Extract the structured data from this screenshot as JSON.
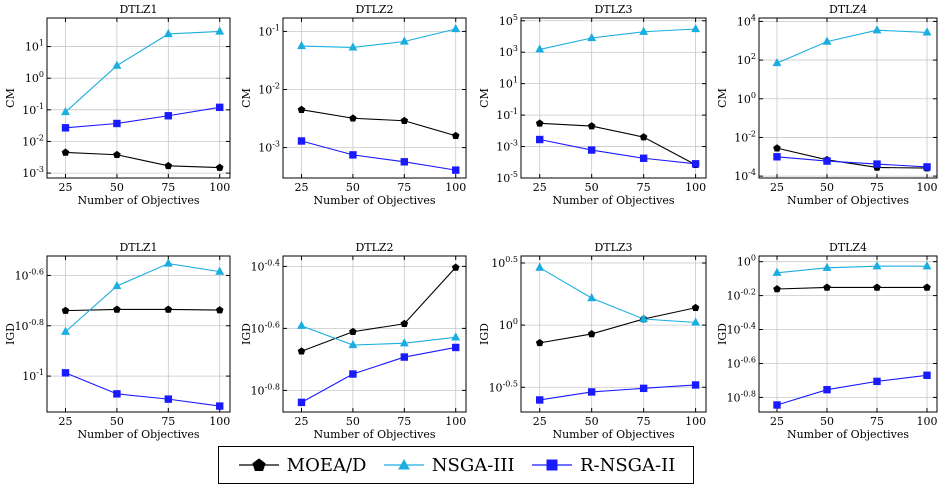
{
  "legend": {
    "entries": [
      {
        "name": "MOEA/D",
        "color": "#000000",
        "marker": "pentagon"
      },
      {
        "name": "NSGA-III",
        "color": "#1aaee0",
        "marker": "triangle"
      },
      {
        "name": "R-NSGA-II",
        "color": "#1a1aff",
        "marker": "square"
      }
    ]
  },
  "chart_data": [
    {
      "type": "line",
      "title": "DTLZ1",
      "xlabel": "Number of Objectives",
      "ylabel": "CM",
      "x": [
        25,
        50,
        75,
        100
      ],
      "xlim": [
        16,
        105
      ],
      "yscale": "log",
      "ylim": [
        0.0007,
        80
      ],
      "yticks": [
        0.001,
        0.01,
        0.1,
        1,
        10
      ],
      "yticklabels": [
        "10^-3",
        "10^-2",
        "10^-1",
        "10^0",
        "10^1"
      ],
      "series": [
        {
          "name": "MOEA/D",
          "values": [
            0.0045,
            0.0038,
            0.0017,
            0.0015
          ]
        },
        {
          "name": "NSGA-III",
          "values": [
            0.085,
            2.5,
            25,
            30
          ]
        },
        {
          "name": "R-NSGA-II",
          "values": [
            0.027,
            0.037,
            0.065,
            0.12
          ]
        }
      ]
    },
    {
      "type": "line",
      "title": "DTLZ2",
      "xlabel": "Number of Objectives",
      "ylabel": "CM",
      "x": [
        25,
        50,
        75,
        100
      ],
      "xlim": [
        16,
        105
      ],
      "yscale": "log",
      "ylim": [
        0.0003,
        0.17
      ],
      "yticks": [
        0.001,
        0.01,
        0.1
      ],
      "yticklabels": [
        "10^-3",
        "10^-2",
        "10^-1"
      ],
      "series": [
        {
          "name": "MOEA/D",
          "values": [
            0.0045,
            0.0032,
            0.0029,
            0.0016
          ]
        },
        {
          "name": "NSGA-III",
          "values": [
            0.056,
            0.053,
            0.067,
            0.11
          ]
        },
        {
          "name": "R-NSGA-II",
          "values": [
            0.0013,
            0.00075,
            0.00057,
            0.00041
          ]
        }
      ]
    },
    {
      "type": "line",
      "title": "DTLZ3",
      "xlabel": "Number of Objectives",
      "ylabel": "CM",
      "x": [
        25,
        50,
        75,
        100
      ],
      "xlim": [
        16,
        105
      ],
      "yscale": "log",
      "ylim": [
        1e-05,
        150000
      ],
      "yticks": [
        1e-05,
        0.001,
        0.1,
        10,
        1000,
        100000
      ],
      "yticklabels": [
        "10^-5",
        "10^-3",
        "10^-1",
        "10^1",
        "10^3",
        "10^5"
      ],
      "series": [
        {
          "name": "MOEA/D",
          "values": [
            0.03,
            0.02,
            0.004,
            7e-05
          ]
        },
        {
          "name": "NSGA-III",
          "values": [
            1500,
            8000,
            20000,
            30000
          ]
        },
        {
          "name": "R-NSGA-II",
          "values": [
            0.0028,
            0.0006,
            0.00018,
            8e-05
          ]
        }
      ]
    },
    {
      "type": "line",
      "title": "DTLZ4",
      "xlabel": "Number of Objectives",
      "ylabel": "CM",
      "x": [
        25,
        50,
        75,
        100
      ],
      "xlim": [
        16,
        105
      ],
      "yscale": "log",
      "ylim": [
        8e-05,
        15000
      ],
      "yticks": [
        0.0001,
        0.01,
        1,
        100,
        10000
      ],
      "yticklabels": [
        "10^-4",
        "10^-2",
        "10^0",
        "10^2",
        "10^4"
      ],
      "series": [
        {
          "name": "MOEA/D",
          "values": [
            0.0028,
            0.0007,
            0.00028,
            0.00026
          ]
        },
        {
          "name": "NSGA-III",
          "values": [
            70,
            900,
            3500,
            2700
          ]
        },
        {
          "name": "R-NSGA-II",
          "values": [
            0.001,
            0.0006,
            0.00042,
            0.0003
          ]
        }
      ]
    },
    {
      "type": "line",
      "title": "DTLZ1",
      "xlabel": "Number of Objectives",
      "ylabel": "IGD",
      "x": [
        25,
        50,
        75,
        100
      ],
      "xlim": [
        16,
        105
      ],
      "yscale": "log",
      "ylim": [
        0.072,
        0.3
      ],
      "yticks": [
        0.251189,
        0.158489,
        0.1
      ],
      "yticklabels": [
        "10^-0.6",
        "10^-0.8",
        "10^-1"
      ],
      "series": [
        {
          "name": "MOEA/D",
          "values": [
            0.182,
            0.184,
            0.184,
            0.183
          ]
        },
        {
          "name": "NSGA-III",
          "values": [
            0.15,
            0.228,
            0.28,
            0.26
          ]
        },
        {
          "name": "R-NSGA-II",
          "values": [
            0.103,
            0.085,
            0.081,
            0.076
          ]
        }
      ]
    },
    {
      "type": "line",
      "title": "DTLZ2",
      "xlabel": "Number of Objectives",
      "ylabel": "IGD",
      "x": [
        25,
        50,
        75,
        100
      ],
      "xlim": [
        16,
        105
      ],
      "yscale": "log",
      "ylim": [
        0.135,
        0.43
      ],
      "yticks": [
        0.398107,
        0.251189,
        0.158489
      ],
      "yticklabels": [
        "10^-0.4",
        "10^-0.6",
        "10^-0.8"
      ],
      "series": [
        {
          "name": "MOEA/D",
          "values": [
            0.212,
            0.245,
            0.26,
            0.395
          ]
        },
        {
          "name": "NSGA-III",
          "values": [
            0.256,
            0.222,
            0.225,
            0.235
          ]
        },
        {
          "name": "R-NSGA-II",
          "values": [
            0.145,
            0.179,
            0.203,
            0.218
          ]
        }
      ]
    },
    {
      "type": "line",
      "title": "DTLZ3",
      "xlabel": "Number of Objectives",
      "ylabel": "IGD",
      "x": [
        25,
        50,
        75,
        100
      ],
      "xlim": [
        16,
        105
      ],
      "yscale": "log",
      "ylim": [
        0.2,
        3.6
      ],
      "yticks": [
        3.162278,
        1,
        0.316228
      ],
      "yticklabels": [
        "10^0.5",
        "10^0",
        "10^-0.5"
      ],
      "series": [
        {
          "name": "MOEA/D",
          "values": [
            0.72,
            0.85,
            1.12,
            1.38
          ]
        },
        {
          "name": "NSGA-III",
          "values": [
            2.9,
            1.65,
            1.12,
            1.05
          ]
        },
        {
          "name": "R-NSGA-II",
          "values": [
            0.25,
            0.29,
            0.31,
            0.33
          ]
        }
      ]
    },
    {
      "type": "line",
      "title": "DTLZ4",
      "xlabel": "Number of Objectives",
      "ylabel": "IGD",
      "x": [
        25,
        50,
        75,
        100
      ],
      "xlim": [
        16,
        105
      ],
      "yscale": "log",
      "ylim": [
        0.13,
        1.08
      ],
      "yticks": [
        1,
        0.630957,
        0.398107,
        0.251189,
        0.158489
      ],
      "yticklabels": [
        "10^0",
        "10^-0.2",
        "10^-0.4",
        "10^-0.6",
        "10^-0.8"
      ],
      "series": [
        {
          "name": "MOEA/D",
          "values": [
            0.69,
            0.705,
            0.705,
            0.705
          ]
        },
        {
          "name": "NSGA-III",
          "values": [
            0.86,
            0.92,
            0.94,
            0.94
          ]
        },
        {
          "name": "R-NSGA-II",
          "values": [
            0.143,
            0.176,
            0.197,
            0.214
          ]
        }
      ]
    }
  ]
}
